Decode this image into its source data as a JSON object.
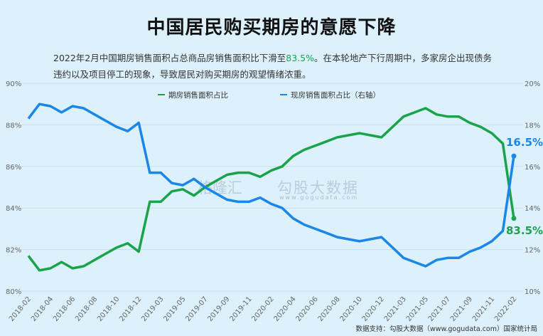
{
  "title": "中国居民购买期房的意愿下降",
  "subtitle": {
    "before": "2022年2月中国期房销售面积占总商品房销售面积比下滑至",
    "highlight": "83.5%",
    "after": "。在本轮地产下行周期中，多家房企出现债务违约以及项目停工的现象，导致居民对购买期房的观望情绪浓重。"
  },
  "watermark": {
    "brand1": "格隆汇",
    "brand2": "勾股大数据",
    "url": "www.gogudata.com"
  },
  "source": "数据支持：勾股大数据（www.gogudata.com）国家统计局",
  "colors": {
    "green": "#1aa34a",
    "blue": "#1a86e8",
    "background": "#dcf1fb"
  },
  "chart_data": {
    "type": "line",
    "grid": true,
    "legend_position": "top-center",
    "x": [
      "2018-02",
      "2018-03",
      "2018-04",
      "2018-05",
      "2018-06",
      "2018-07",
      "2018-08",
      "2018-09",
      "2018-10",
      "2018-11",
      "2018-12",
      "2019-02",
      "2019-03",
      "2019-04",
      "2019-05",
      "2019-06",
      "2019-07",
      "2019-08",
      "2019-09",
      "2019-10",
      "2019-11",
      "2019-12",
      "2020-02",
      "2020-03",
      "2020-04",
      "2020-05",
      "2020-06",
      "2020-07",
      "2020-08",
      "2020-09",
      "2020-10",
      "2020-11",
      "2020-12",
      "2021-02",
      "2021-03",
      "2021-04",
      "2021-05",
      "2021-06",
      "2021-07",
      "2021-08",
      "2021-09",
      "2021-10",
      "2021-11",
      "2021-12",
      "2022-02"
    ],
    "x_tick_labels": [
      "2018-02",
      "2018-04",
      "2018-06",
      "2018-08",
      "2018-10",
      "2018-12",
      "2019-03",
      "2019-05",
      "2019-07",
      "2019-09",
      "2019-11",
      "2020-02",
      "2020-04",
      "2020-06",
      "2020-08",
      "2020-10",
      "2020-12",
      "2021-03",
      "2021-05",
      "2021-07",
      "2021-09",
      "2021-11",
      "2022-02"
    ],
    "y_left": {
      "ylim": [
        80,
        90
      ],
      "ticks": [
        "80%",
        "82%",
        "84%",
        "86%",
        "88%",
        "90%"
      ]
    },
    "y_right": {
      "ylim": [
        10,
        20
      ],
      "ticks": [
        "10%",
        "12%",
        "14%",
        "16%",
        "18%",
        "20%"
      ]
    },
    "series": [
      {
        "name": "期房销售面积占比",
        "axis": "left",
        "color": "#1aa34a",
        "end_label": "83.5%",
        "values": [
          81.7,
          81.0,
          81.1,
          81.4,
          81.1,
          81.2,
          81.5,
          81.8,
          82.1,
          82.3,
          81.9,
          84.3,
          84.3,
          84.8,
          84.9,
          84.6,
          85.0,
          85.3,
          85.6,
          85.7,
          85.7,
          85.5,
          85.8,
          86.0,
          86.5,
          86.8,
          87.0,
          87.2,
          87.4,
          87.5,
          87.6,
          87.5,
          87.4,
          87.9,
          88.4,
          88.6,
          88.8,
          88.5,
          88.4,
          88.4,
          88.1,
          87.9,
          87.6,
          87.1,
          83.5
        ]
      },
      {
        "name": "现房销售面积占比（右轴）",
        "axis": "right",
        "color": "#1a86e8",
        "end_label": "16.5%",
        "values": [
          18.3,
          19.0,
          18.9,
          18.6,
          18.9,
          18.8,
          18.5,
          18.2,
          17.9,
          17.7,
          18.1,
          15.7,
          15.7,
          15.2,
          15.1,
          15.4,
          15.0,
          14.7,
          14.4,
          14.3,
          14.3,
          14.5,
          14.2,
          14.0,
          13.5,
          13.2,
          13.0,
          12.8,
          12.6,
          12.5,
          12.4,
          12.5,
          12.6,
          12.1,
          11.6,
          11.4,
          11.2,
          11.5,
          11.6,
          11.6,
          11.9,
          12.1,
          12.4,
          12.9,
          16.5
        ]
      }
    ]
  }
}
